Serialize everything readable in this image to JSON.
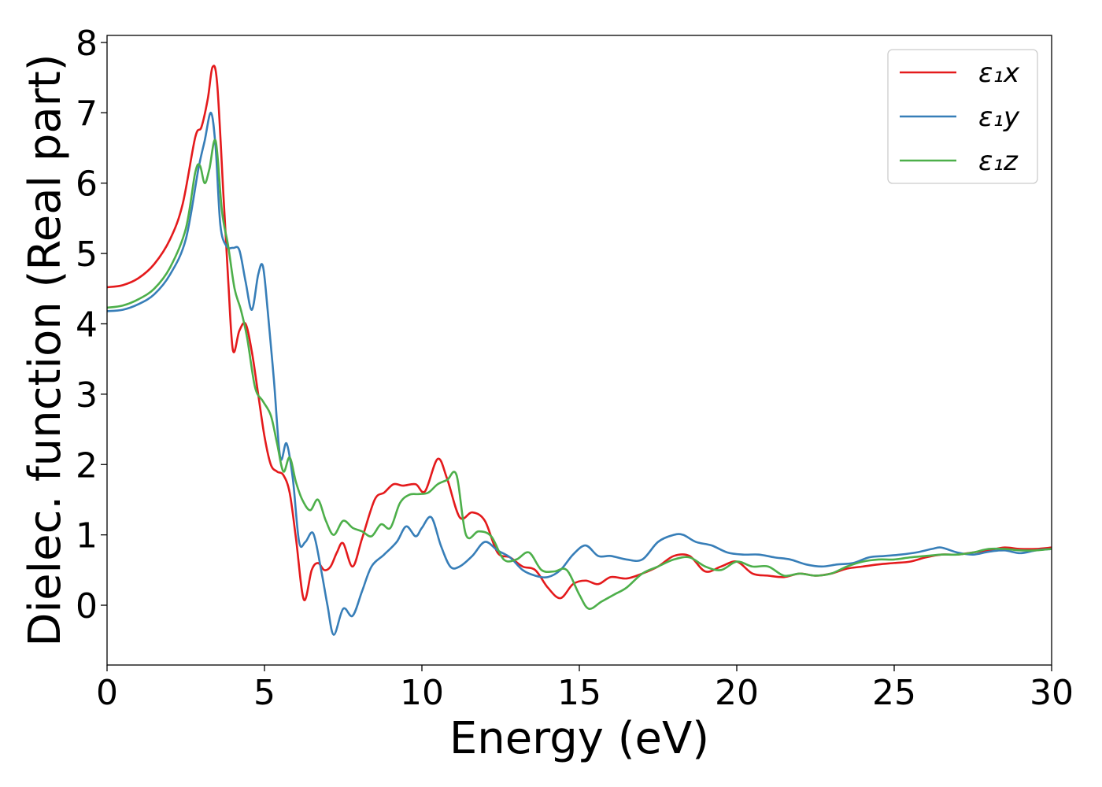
{
  "chart_data": {
    "type": "line",
    "title": "",
    "xlabel": "Energy (eV)",
    "ylabel": "Dielec. function (Real part)",
    "xlim": [
      0,
      30
    ],
    "ylim": [
      -0.85,
      8.1
    ],
    "xticks": [
      0,
      5,
      10,
      15,
      20,
      25,
      30
    ],
    "yticks": [
      0,
      1,
      2,
      3,
      4,
      5,
      6,
      7,
      8
    ],
    "grid": false,
    "legend_position": "top-right",
    "series": [
      {
        "name": "ε₁x",
        "color": "#e41a1c",
        "x": [
          0,
          0.5,
          1.0,
          1.5,
          2.0,
          2.4,
          2.8,
          3.0,
          3.2,
          3.35,
          3.5,
          3.7,
          3.85,
          4.0,
          4.2,
          4.4,
          4.6,
          4.8,
          5.0,
          5.2,
          5.4,
          5.6,
          5.8,
          6.0,
          6.25,
          6.5,
          6.7,
          6.9,
          7.1,
          7.3,
          7.5,
          7.8,
          8.1,
          8.5,
          8.8,
          9.1,
          9.4,
          9.8,
          10.1,
          10.5,
          10.8,
          11.2,
          11.6,
          12.0,
          12.4,
          12.8,
          13.2,
          13.6,
          14.0,
          14.4,
          14.8,
          15.2,
          15.6,
          16.0,
          16.5,
          17.0,
          17.5,
          18.0,
          18.5,
          19.0,
          19.5,
          20.0,
          20.5,
          21.0,
          21.5,
          22.0,
          22.5,
          23.0,
          23.5,
          24.0,
          24.5,
          25.0,
          25.5,
          26.0,
          26.5,
          27.0,
          27.5,
          28.0,
          28.5,
          29.0,
          29.5,
          30.0
        ],
        "y": [
          4.52,
          4.55,
          4.65,
          4.85,
          5.2,
          5.7,
          6.65,
          6.8,
          7.2,
          7.65,
          7.4,
          5.8,
          4.6,
          3.62,
          3.9,
          4.0,
          3.6,
          3.0,
          2.4,
          2.0,
          1.9,
          1.85,
          1.6,
          0.95,
          0.08,
          0.5,
          0.6,
          0.5,
          0.55,
          0.75,
          0.88,
          0.55,
          0.95,
          1.5,
          1.6,
          1.72,
          1.7,
          1.72,
          1.62,
          2.08,
          1.8,
          1.25,
          1.32,
          1.2,
          0.75,
          0.68,
          0.55,
          0.5,
          0.25,
          0.1,
          0.3,
          0.35,
          0.3,
          0.4,
          0.38,
          0.45,
          0.55,
          0.7,
          0.7,
          0.48,
          0.55,
          0.62,
          0.45,
          0.42,
          0.4,
          0.45,
          0.42,
          0.45,
          0.52,
          0.55,
          0.58,
          0.6,
          0.62,
          0.68,
          0.72,
          0.72,
          0.75,
          0.78,
          0.82,
          0.8,
          0.8,
          0.82
        ]
      },
      {
        "name": "ε₁y",
        "color": "#377eb8",
        "x": [
          0,
          0.5,
          1.0,
          1.5,
          2.0,
          2.5,
          2.9,
          3.1,
          3.3,
          3.45,
          3.6,
          3.8,
          4.0,
          4.2,
          4.4,
          4.6,
          4.8,
          4.95,
          5.1,
          5.3,
          5.5,
          5.7,
          5.9,
          6.1,
          6.3,
          6.55,
          6.8,
          7.0,
          7.2,
          7.5,
          7.8,
          8.1,
          8.4,
          8.8,
          9.2,
          9.5,
          9.8,
          10.0,
          10.3,
          10.6,
          10.9,
          11.2,
          11.6,
          12.0,
          12.4,
          12.8,
          13.2,
          13.6,
          14.0,
          14.4,
          14.8,
          15.2,
          15.6,
          16.0,
          16.5,
          17.0,
          17.5,
          18.0,
          18.3,
          18.7,
          19.2,
          19.7,
          20.2,
          20.7,
          21.2,
          21.7,
          22.2,
          22.7,
          23.2,
          23.7,
          24.2,
          24.7,
          25.2,
          25.7,
          26.2,
          26.5,
          27.0,
          27.5,
          28.0,
          28.5,
          29.0,
          29.5,
          30.0
        ],
        "y": [
          4.18,
          4.2,
          4.28,
          4.42,
          4.7,
          5.2,
          6.2,
          6.6,
          7.0,
          6.5,
          5.4,
          5.1,
          5.08,
          5.05,
          4.6,
          4.2,
          4.7,
          4.82,
          4.2,
          3.2,
          2.1,
          2.3,
          1.8,
          0.9,
          0.9,
          1.02,
          0.5,
          0.0,
          -0.42,
          -0.05,
          -0.15,
          0.2,
          0.55,
          0.72,
          0.9,
          1.12,
          0.98,
          1.1,
          1.25,
          0.85,
          0.55,
          0.55,
          0.7,
          0.9,
          0.78,
          0.68,
          0.5,
          0.42,
          0.4,
          0.5,
          0.72,
          0.85,
          0.7,
          0.7,
          0.65,
          0.65,
          0.9,
          1.0,
          1.0,
          0.9,
          0.85,
          0.75,
          0.72,
          0.72,
          0.68,
          0.65,
          0.58,
          0.55,
          0.58,
          0.6,
          0.68,
          0.7,
          0.72,
          0.75,
          0.8,
          0.82,
          0.75,
          0.72,
          0.76,
          0.78,
          0.74,
          0.78,
          0.8
        ]
      },
      {
        "name": "ε₁z",
        "color": "#4daf4a",
        "x": [
          0,
          0.5,
          1.0,
          1.5,
          2.0,
          2.5,
          2.8,
          2.95,
          3.1,
          3.25,
          3.45,
          3.65,
          3.85,
          4.05,
          4.25,
          4.45,
          4.7,
          4.95,
          5.2,
          5.4,
          5.6,
          5.8,
          6.0,
          6.2,
          6.45,
          6.7,
          6.95,
          7.2,
          7.5,
          7.8,
          8.1,
          8.4,
          8.7,
          9.0,
          9.3,
          9.6,
          9.9,
          10.2,
          10.5,
          10.8,
          11.1,
          11.4,
          11.8,
          12.2,
          12.6,
          13.0,
          13.4,
          13.8,
          14.2,
          14.6,
          15.0,
          15.3,
          15.7,
          16.1,
          16.5,
          17.0,
          17.5,
          18.0,
          18.5,
          19.0,
          19.5,
          20.0,
          20.5,
          21.0,
          21.5,
          22.0,
          22.5,
          23.0,
          23.5,
          24.0,
          24.5,
          25.0,
          25.5,
          26.0,
          26.5,
          27.0,
          27.5,
          28.0,
          28.5,
          29.0,
          29.5,
          30.0
        ],
        "y": [
          4.23,
          4.26,
          4.35,
          4.5,
          4.8,
          5.35,
          6.15,
          6.25,
          6.0,
          6.2,
          6.6,
          5.6,
          5.1,
          4.5,
          4.2,
          3.8,
          3.1,
          2.9,
          2.7,
          2.3,
          1.9,
          2.1,
          1.75,
          1.5,
          1.35,
          1.5,
          1.2,
          1.0,
          1.2,
          1.1,
          1.05,
          0.98,
          1.15,
          1.1,
          1.45,
          1.57,
          1.58,
          1.6,
          1.72,
          1.78,
          1.85,
          1.0,
          1.05,
          0.98,
          0.65,
          0.65,
          0.75,
          0.5,
          0.48,
          0.5,
          0.15,
          -0.05,
          0.05,
          0.15,
          0.25,
          0.45,
          0.55,
          0.65,
          0.68,
          0.55,
          0.5,
          0.62,
          0.55,
          0.55,
          0.42,
          0.45,
          0.42,
          0.45,
          0.55,
          0.62,
          0.65,
          0.65,
          0.68,
          0.7,
          0.72,
          0.72,
          0.75,
          0.8,
          0.8,
          0.78,
          0.78,
          0.8
        ]
      }
    ]
  }
}
